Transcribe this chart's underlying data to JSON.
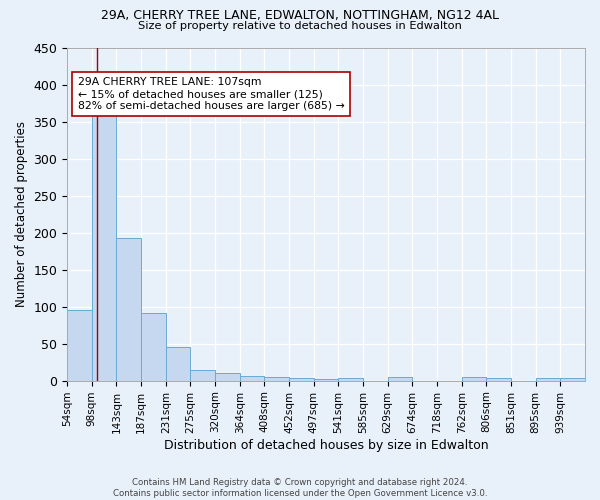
{
  "title_line1": "29A, CHERRY TREE LANE, EDWALTON, NOTTINGHAM, NG12 4AL",
  "title_line2": "Size of property relative to detached houses in Edwalton",
  "xlabel": "Distribution of detached houses by size in Edwalton",
  "ylabel": "Number of detached properties",
  "bin_labels": [
    "54sqm",
    "98sqm",
    "143sqm",
    "187sqm",
    "231sqm",
    "275sqm",
    "320sqm",
    "364sqm",
    "408sqm",
    "452sqm",
    "497sqm",
    "541sqm",
    "585sqm",
    "629sqm",
    "674sqm",
    "718sqm",
    "762sqm",
    "806sqm",
    "851sqm",
    "895sqm",
    "939sqm"
  ],
  "bar_heights": [
    95,
    362,
    193,
    92,
    45,
    14,
    10,
    7,
    5,
    4,
    2,
    3,
    0,
    5,
    0,
    0,
    5,
    3,
    0,
    3,
    4
  ],
  "bar_color": "#c5d8f0",
  "bar_edge_color": "#6aaad4",
  "vline_color": "#aa0000",
  "annotation_text": "29A CHERRY TREE LANE: 107sqm\n← 15% of detached houses are smaller (125)\n82% of semi-detached houses are larger (685) →",
  "annotation_box_color": "white",
  "annotation_box_edge_color": "#aa0000",
  "ylim": [
    0,
    450
  ],
  "yticks": [
    0,
    50,
    100,
    150,
    200,
    250,
    300,
    350,
    400,
    450
  ],
  "footnote": "Contains HM Land Registry data © Crown copyright and database right 2024.\nContains public sector information licensed under the Open Government Licence v3.0.",
  "bg_color": "#e8f0fa",
  "grid_color": "#ffffff",
  "figsize": [
    6.0,
    5.0
  ],
  "dpi": 100
}
